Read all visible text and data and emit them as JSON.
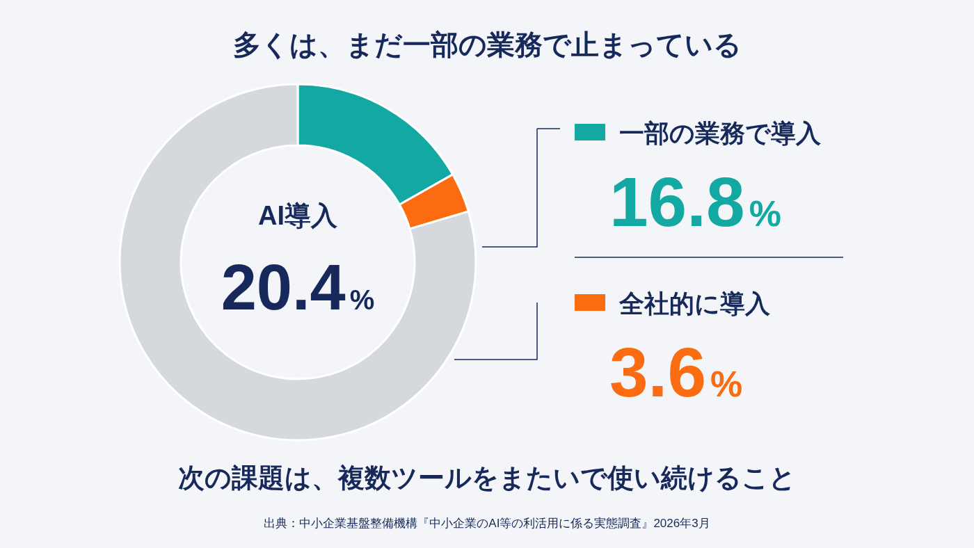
{
  "chart_data": {
    "type": "donut",
    "title": "多くは、まだ一部の業務で止まっている",
    "categories": [
      "一部の業務で導入",
      "全社的に導入",
      null
    ],
    "values": [
      16.8,
      3.6,
      79.6
    ],
    "colors": [
      "#13a8a2",
      "#fb6b12",
      "#d5d9de"
    ],
    "value_labels": [
      "16.8%",
      "3.6%",
      null
    ],
    "legend": "right",
    "annotations": [
      "AI導入",
      "20.4%",
      "次の課題は、複数ツールをまたいで使い続けること",
      "出典：中小企業基盤整備機構『中小企業のAI等の利活用に係る実態調査』2026年3月"
    ]
  }
}
